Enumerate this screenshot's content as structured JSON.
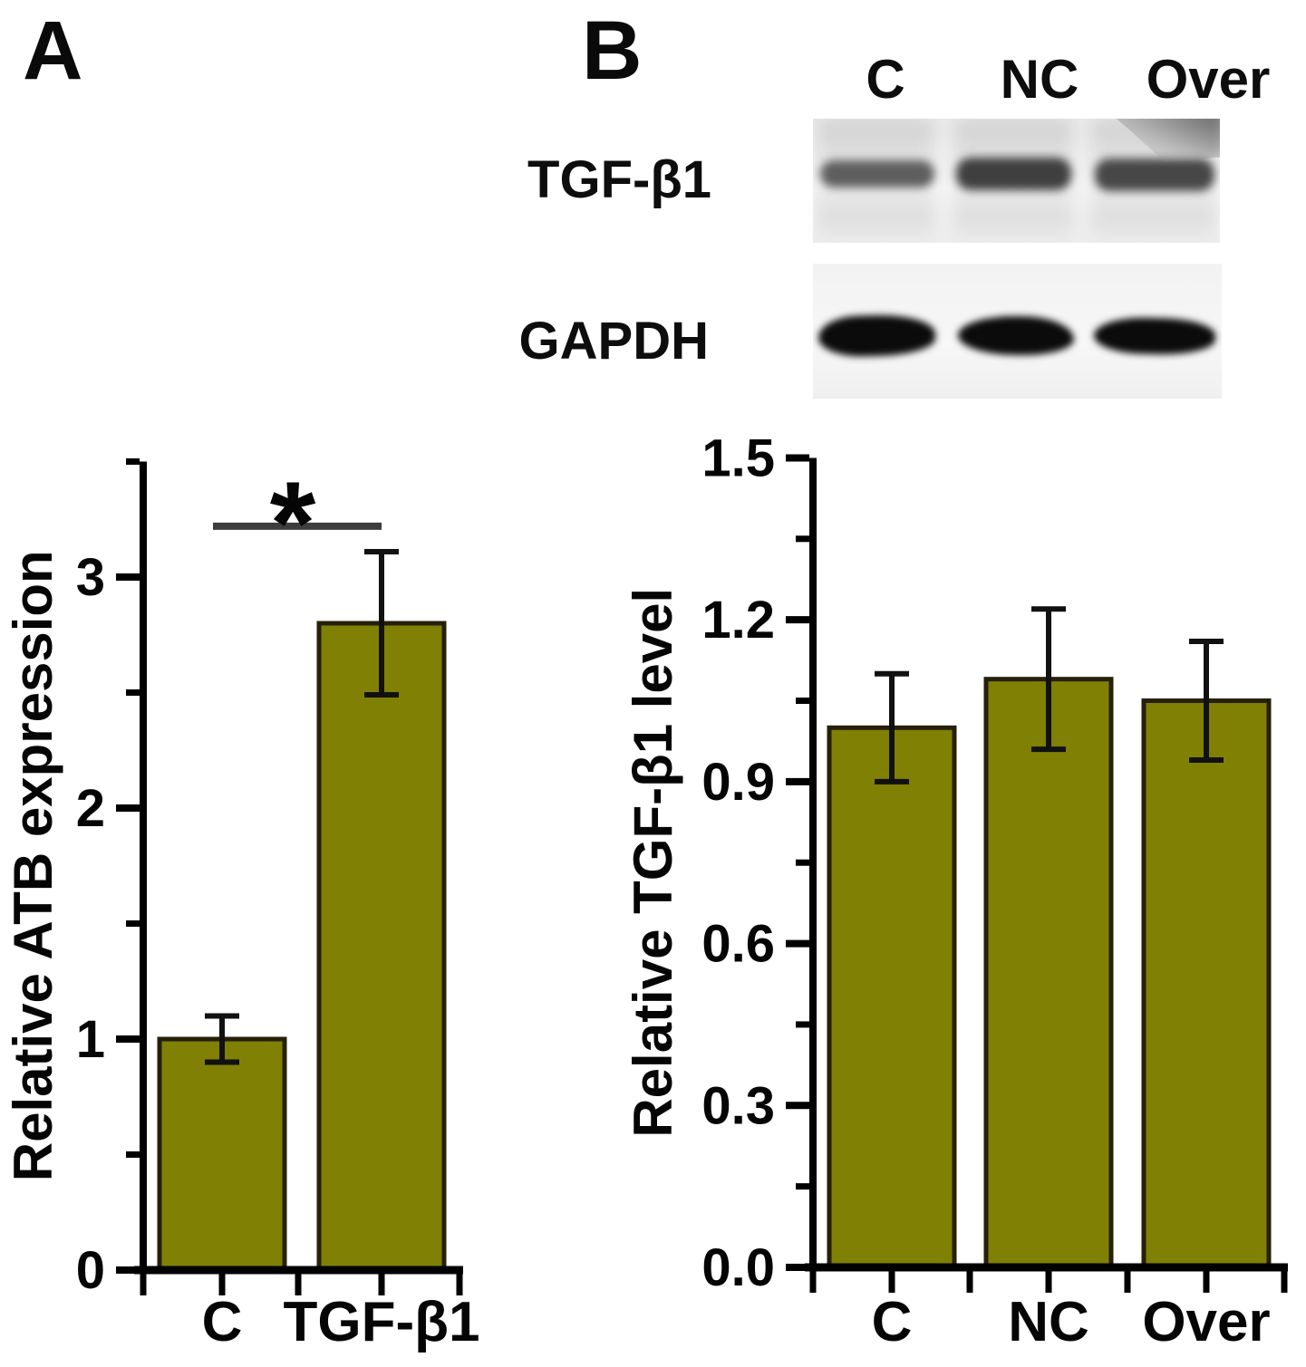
{
  "figure": {
    "panel_a_label": "A",
    "panel_b_label": "B"
  },
  "colors": {
    "bar_fill": "#808004",
    "bar_stroke": "#25200a",
    "axis": "#000000",
    "error_bar": "#111111",
    "significance_line": "#3d3d3d",
    "blot_band_faint": "#565656",
    "blot_band_dark": "#0b0b0b"
  },
  "blot": {
    "lane_labels": [
      "C",
      "NC",
      "Over"
    ],
    "row_labels": [
      "TGF-β1",
      "GAPDH"
    ]
  },
  "chart_data": [
    {
      "type": "bar",
      "panel": "A",
      "categories": [
        "C",
        "TGF-β1"
      ],
      "values": [
        1.0,
        2.8
      ],
      "errors_plus": [
        0.1,
        0.31
      ],
      "errors_minus": [
        0.1,
        0.31
      ],
      "ylabel": "Relative ATB expression",
      "xlabel": "",
      "title": "",
      "ylim": [
        0,
        3.5
      ],
      "yticks": [
        0,
        1,
        2,
        3
      ],
      "ytick_labels": [
        "0",
        "1",
        "2",
        "3"
      ],
      "minor_yticks": [
        0.5,
        1.5,
        2.5,
        3.5
      ],
      "grid": false,
      "legend": null,
      "significance": {
        "between": [
          "C",
          "TGF-β1"
        ],
        "label": "*",
        "line_y": 3.22
      }
    },
    {
      "type": "bar",
      "panel": "B",
      "categories": [
        "C",
        "NC",
        "Over"
      ],
      "values": [
        1.0,
        1.09,
        1.05
      ],
      "errors_plus": [
        0.1,
        0.13,
        0.11
      ],
      "errors_minus": [
        0.1,
        0.13,
        0.11
      ],
      "ylabel": "Relative TGF-β1 level",
      "xlabel": "",
      "title": "",
      "ylim": [
        0,
        1.5
      ],
      "yticks": [
        0.0,
        0.3,
        0.6,
        0.9,
        1.2,
        1.5
      ],
      "ytick_labels": [
        "0.0",
        "0.3",
        "0.6",
        "0.9",
        "1.2",
        "1.5"
      ],
      "minor_yticks": [
        0.15,
        0.45,
        0.75,
        1.05,
        1.35
      ],
      "grid": false,
      "legend": null,
      "significance": null
    }
  ]
}
